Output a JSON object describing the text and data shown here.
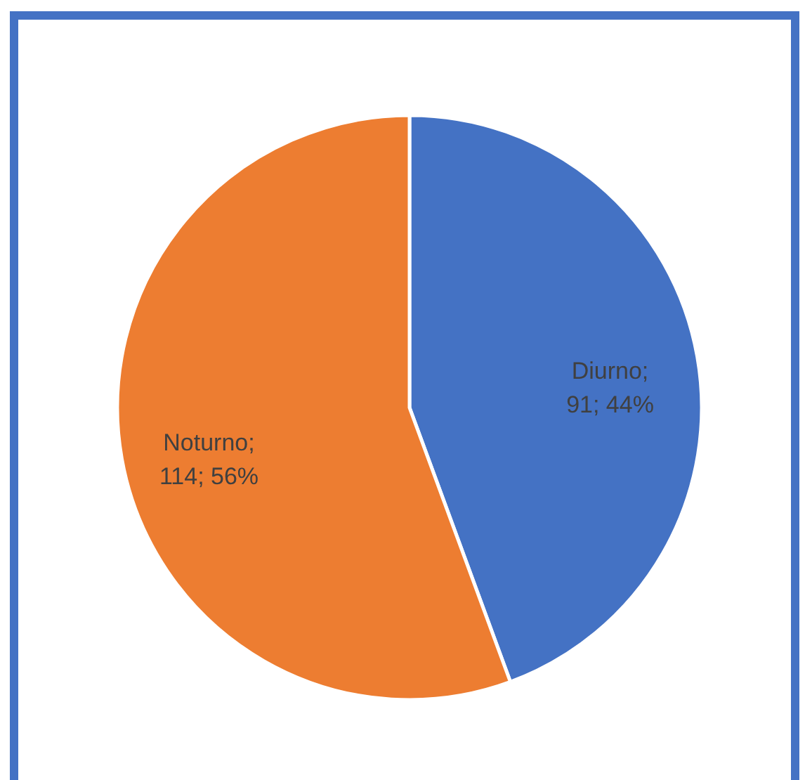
{
  "chart_data": {
    "type": "pie",
    "categories": [
      "Diurno",
      "Noturno"
    ],
    "values": [
      91,
      114
    ],
    "colors": [
      "#4472c4",
      "#ed7d31"
    ],
    "value_labels": [
      ";\n91; 44%",
      ";\n114; 56%"
    ]
  }
}
